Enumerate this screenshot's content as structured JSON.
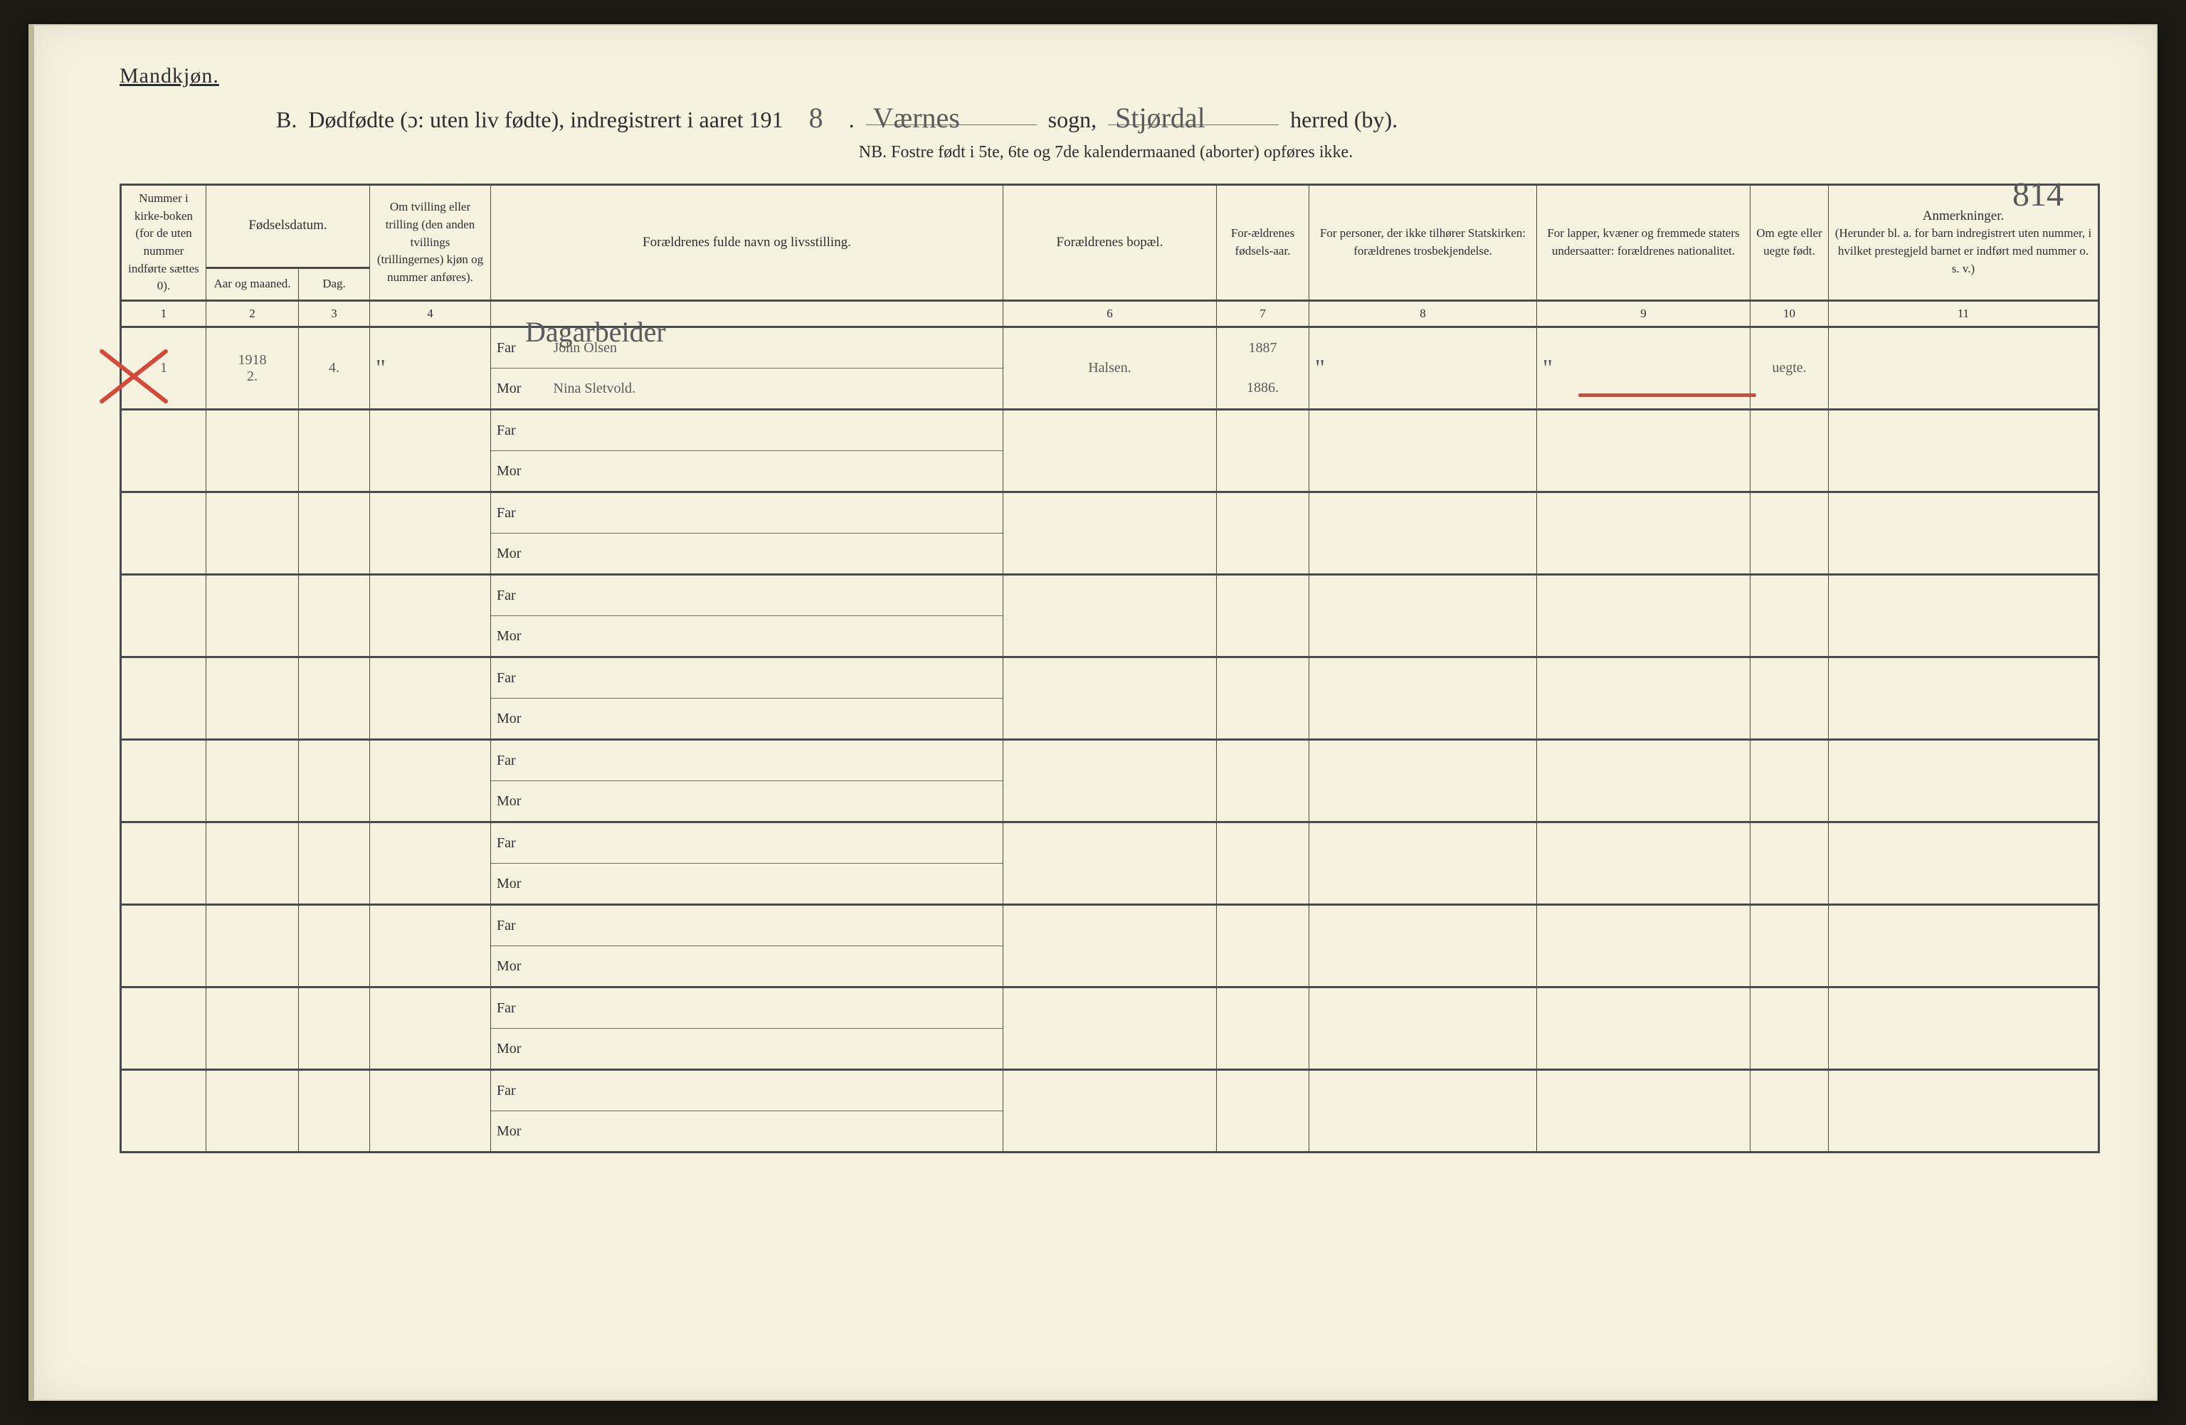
{
  "header": {
    "gender_label": "Mandkjøn.",
    "title_prefix": "B.  Dødfødte (ɔ: uten liv fødte), indregistrert i aaret 191",
    "year_last_digit": "8",
    "after_year": ".",
    "sogn_value": "Værnes",
    "sogn_label": "sogn,",
    "herred_value": "Stjørdal",
    "herred_label": "herred (by).",
    "subtitle": "NB.  Fostre født i 5te, 6te og 7de kalendermaaned (aborter) opføres ikke.",
    "sheet_number": "814"
  },
  "columns": {
    "c1": "Nummer i kirke-boken (for de uten nummer indførte sættes 0).",
    "c2_group": "Fødselsdatum.",
    "c2": "Aar og maaned.",
    "c3": "Dag.",
    "c4": "Om tvilling eller trilling (den anden tvillings (trillingernes) kjøn og nummer anføres).",
    "c5": "Forældrenes fulde navn og livsstilling.",
    "c6": "Forældrenes bopæl.",
    "c7": "For-ældrenes fødsels-aar.",
    "c8": "For personer, der ikke tilhører Statskirken: forældrenes trosbekjendelse.",
    "c9": "For lapper, kvæner og fremmede staters undersaatter: forældrenes nationalitet.",
    "c10": "Om egte eller uegte født.",
    "c11": "Anmerkninger.",
    "c11_sub": "(Herunder bl. a. for barn indregistrert uten nummer, i hvilket prestegjeld barnet er indført med nummer o. s. v.)",
    "nums": [
      "1",
      "2",
      "3",
      "4",
      "",
      "",
      "6",
      "7",
      "8",
      "9",
      "10",
      "11"
    ],
    "far_label": "Far",
    "mor_label": "Mor"
  },
  "entries": [
    {
      "num": "1",
      "year_month": "1918\n2.",
      "day": "4.",
      "twin": "\"",
      "occupation": "Dagarbeider",
      "father": "John Olsen",
      "mother": "Nina Sletvold.",
      "residence": "Halsen.",
      "father_birth": "1887",
      "mother_birth": "1886.",
      "faith": "\"",
      "nationality": "\"",
      "legit": "uegte.",
      "remarks": ""
    }
  ],
  "empty_rows": 9,
  "style": {
    "paper": "#f5f2df",
    "ink": "#2e2e2e",
    "line": "#4a4a4a",
    "handwriting": "#5a5a5a",
    "red": "#d44a3a"
  }
}
